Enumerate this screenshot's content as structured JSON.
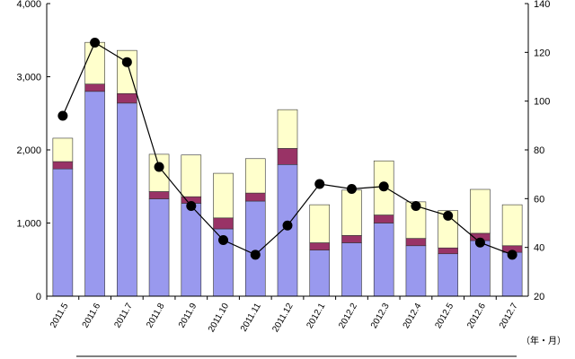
{
  "chart_data": {
    "type": "bar",
    "categories": [
      "2011.5",
      "2011.6",
      "2011.7",
      "2011.8",
      "2011.9",
      "2011.10",
      "2011.11",
      "2011.12",
      "2012.1",
      "2012.2",
      "2012.3",
      "2012.4",
      "2012.5",
      "2012.6",
      "2012.7"
    ],
    "series": [
      {
        "type": "bar",
        "stack": "a",
        "color": "#9999ee",
        "values": [
          1740,
          2800,
          2640,
          1330,
          1270,
          920,
          1300,
          1800,
          630,
          730,
          1000,
          690,
          580,
          760,
          600
        ]
      },
      {
        "type": "bar",
        "stack": "a",
        "color": "#993366",
        "values": [
          100,
          100,
          130,
          100,
          90,
          150,
          110,
          220,
          100,
          100,
          110,
          100,
          80,
          100,
          90
        ]
      },
      {
        "type": "bar",
        "stack": "a",
        "color": "#ffffcc",
        "values": [
          320,
          570,
          590,
          510,
          570,
          610,
          470,
          530,
          520,
          620,
          740,
          500,
          510,
          600,
          560
        ]
      },
      {
        "type": "line",
        "axis": "right",
        "color": "#000000",
        "values": [
          94,
          124,
          116,
          73,
          57,
          43,
          37,
          49,
          66,
          64,
          65,
          57,
          53,
          42,
          37
        ]
      }
    ],
    "y_left": {
      "min": 0,
      "max": 4000,
      "ticks": [
        "0",
        "1,000",
        "2,000",
        "3,000",
        "4,000"
      ]
    },
    "y_right": {
      "min": 20,
      "max": 140,
      "ticks": [
        "20",
        "40",
        "60",
        "80",
        "100",
        "120",
        "140"
      ]
    },
    "x_unit_label": "（年・月）",
    "grid": false,
    "legend": "none"
  }
}
